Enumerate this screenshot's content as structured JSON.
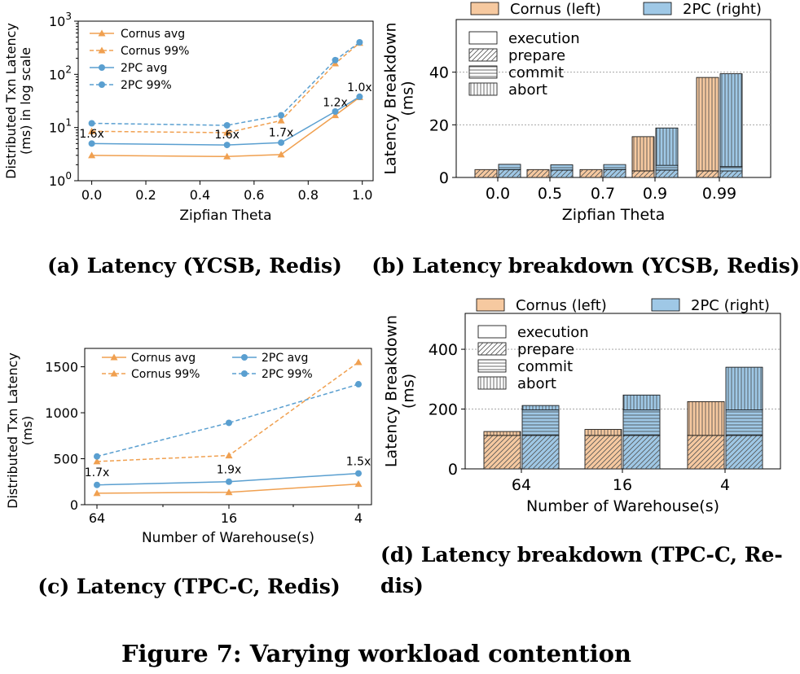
{
  "figure_caption": "Figure 7: Varying workload contention",
  "colors": {
    "cornus": "#f0a050",
    "twopc": "#5a9fd0",
    "cornus_fill": "#f6c9a0",
    "twopc_fill": "#9fc8e6"
  },
  "chart_data": [
    {
      "id": "a",
      "type": "line",
      "caption": "(a) Latency (YCSB, Redis)",
      "xlabel": "Zipfian Theta",
      "ylabel": "Distributed Txn Latency (ms) in log scale",
      "ylabel_lines": [
        "Distributed Txn Latency",
        "(ms) in log scale"
      ],
      "yscale": "log",
      "xlim": [
        -0.05,
        1.04
      ],
      "ylim": [
        1,
        1000
      ],
      "xticks": [
        0.0,
        0.2,
        0.4,
        0.6,
        0.8,
        1.0
      ],
      "xtick_labels": [
        "0.0",
        "0.2",
        "0.4",
        "0.6",
        "0.8",
        "1.0"
      ],
      "yticks": [
        1,
        10,
        100,
        1000
      ],
      "ytick_labels": [
        [
          "10",
          "0"
        ],
        [
          "10",
          "1"
        ],
        [
          "10",
          "2"
        ],
        [
          "10",
          "3"
        ]
      ],
      "x": [
        0.0,
        0.5,
        0.7,
        0.9,
        0.99
      ],
      "series": [
        {
          "name": "Cornus avg",
          "style": "solid",
          "marker": "triangle",
          "color": "#f0a050",
          "values": [
            3.0,
            2.85,
            3.1,
            17.0,
            37.0
          ]
        },
        {
          "name": "Cornus 99%",
          "style": "dashed",
          "marker": "triangle",
          "color": "#f0a050",
          "values": [
            8.5,
            8.0,
            13.5,
            160.0,
            390.0
          ]
        },
        {
          "name": "2PC avg",
          "style": "solid",
          "marker": "circle",
          "color": "#5a9fd0",
          "values": [
            5.0,
            4.7,
            5.2,
            20.0,
            38.0
          ]
        },
        {
          "name": "2PC 99%",
          "style": "dashed",
          "marker": "circle",
          "color": "#5a9fd0",
          "values": [
            12.0,
            11.0,
            17.0,
            185.0,
            400.0
          ]
        }
      ],
      "annotations": [
        {
          "text": "1.6x",
          "x": 0.0,
          "y": 6.5
        },
        {
          "text": "1.6x",
          "x": 0.5,
          "y": 6.2
        },
        {
          "text": "1.7x",
          "x": 0.7,
          "y": 6.8
        },
        {
          "text": "1.2x",
          "x": 0.9,
          "y": 25.0
        },
        {
          "text": "1.0x",
          "x": 0.99,
          "y": 48.0
        }
      ],
      "legend": "top-left"
    },
    {
      "id": "b",
      "type": "bar",
      "caption": "(b) Latency breakdown (YCSB, Redis)",
      "xlabel": "Zipfian Theta",
      "ylabel": "Latency Breakdown (ms)",
      "ylabel_lines": [
        "Latency Breakdown",
        "(ms)"
      ],
      "categories": [
        "0.0",
        "0.5",
        "0.7",
        "0.9",
        "0.99"
      ],
      "ylim": [
        0,
        60
      ],
      "yticks": [
        0,
        20,
        40
      ],
      "legend_systems": [
        "Cornus (left)",
        "2PC (right)"
      ],
      "legend_components": [
        "execution",
        "prepare",
        "commit",
        "abort"
      ],
      "series": [
        {
          "name": "Cornus (left)",
          "execution": [
            0,
            0,
            0,
            0,
            0
          ],
          "prepare": [
            3.0,
            3.0,
            3.0,
            2.5,
            2.5
          ],
          "commit": [
            0,
            0,
            0,
            0,
            0
          ],
          "abort": [
            0,
            0,
            0,
            13.0,
            35.5
          ]
        },
        {
          "name": "2PC (right)",
          "execution": [
            0,
            0,
            0,
            0,
            0
          ],
          "prepare": [
            3.0,
            2.8,
            3.0,
            2.8,
            2.5
          ],
          "commit": [
            2.0,
            2.0,
            1.9,
            1.8,
            1.6
          ],
          "abort": [
            0,
            0,
            0,
            14.2,
            35.3
          ]
        }
      ],
      "legend": "top-left"
    },
    {
      "id": "c",
      "type": "line",
      "caption": "(c) Latency (TPC-C, Redis)",
      "xlabel": "Number of Warehouse(s)",
      "ylabel": "Distributed Txn Latency (ms)",
      "ylabel_lines": [
        "Distributed Txn Latency",
        "(ms)"
      ],
      "categories": [
        "64",
        "16",
        "4"
      ],
      "ylim": [
        0,
        1700
      ],
      "yticks": [
        0,
        500,
        1000,
        1500
      ],
      "series": [
        {
          "name": "Cornus avg",
          "style": "solid",
          "marker": "triangle",
          "color": "#f0a050",
          "values": [
            125,
            135,
            225
          ]
        },
        {
          "name": "Cornus 99%",
          "style": "dashed",
          "marker": "triangle",
          "color": "#f0a050",
          "values": [
            470,
            535,
            1550
          ]
        },
        {
          "name": "2PC avg",
          "style": "solid",
          "marker": "circle",
          "color": "#5a9fd0",
          "values": [
            215,
            250,
            340
          ]
        },
        {
          "name": "2PC 99%",
          "style": "dashed",
          "marker": "circle",
          "color": "#5a9fd0",
          "values": [
            525,
            890,
            1310
          ]
        }
      ],
      "annotations": [
        {
          "text": "1.7x",
          "cat": 0,
          "y": 310
        },
        {
          "text": "1.9x",
          "cat": 1,
          "y": 340
        },
        {
          "text": "1.5x",
          "cat": 2,
          "y": 430
        }
      ],
      "legend": "top-left"
    },
    {
      "id": "d",
      "type": "bar",
      "caption": "(d) Latency breakdown (TPC-C, Redis)",
      "caption_lines": [
        "(d) Latency breakdown (TPC-C, Re-",
        "dis)"
      ],
      "xlabel": "Number of Warehouse(s)",
      "ylabel": "Latency Breakdown (ms)",
      "ylabel_lines": [
        "Latency Breakdown",
        "(ms)"
      ],
      "categories": [
        "64",
        "16",
        "4"
      ],
      "ylim": [
        0,
        520
      ],
      "yticks": [
        0,
        200,
        400
      ],
      "legend_systems": [
        "Cornus (left)",
        "2PC (right)"
      ],
      "legend_components": [
        "execution",
        "prepare",
        "commit",
        "abort"
      ],
      "series": [
        {
          "name": "Cornus (left)",
          "execution": [
            0,
            0,
            0
          ],
          "prepare": [
            112,
            112,
            112
          ],
          "commit": [
            0,
            0,
            0
          ],
          "abort": [
            13,
            20,
            113
          ]
        },
        {
          "name": "2PC (right)",
          "execution": [
            0,
            0,
            0
          ],
          "prepare": [
            112,
            112,
            112
          ],
          "commit": [
            85,
            85,
            85
          ],
          "abort": [
            15,
            50,
            143
          ]
        }
      ],
      "legend": "top-left"
    }
  ]
}
